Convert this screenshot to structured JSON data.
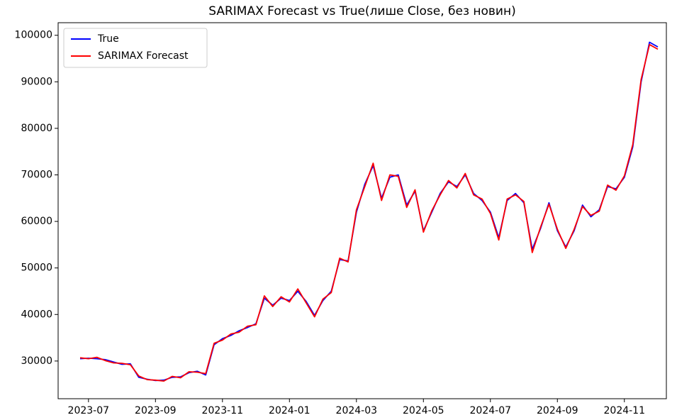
{
  "chart_data": {
    "type": "line",
    "title": "SARIMAX Forecast vs True(лише Close, без новин)",
    "categories": [
      null,
      "2023-07",
      null,
      null,
      null,
      null,
      null,
      null,
      null,
      "2023-09",
      null,
      null,
      null,
      null,
      null,
      null,
      null,
      "2023-11",
      null,
      null,
      null,
      null,
      null,
      null,
      null,
      "2024-01",
      null,
      null,
      null,
      null,
      null,
      null,
      null,
      "2024-03",
      null,
      null,
      null,
      null,
      null,
      null,
      null,
      "2024-05",
      null,
      null,
      null,
      null,
      null,
      null,
      null,
      "2024-07",
      null,
      null,
      null,
      null,
      null,
      null,
      null,
      "2024-09",
      null,
      null,
      null,
      null,
      null,
      null,
      null,
      "2024-11",
      null,
      null,
      null,
      null
    ],
    "series": [
      {
        "name": "True",
        "color": "#0000ff",
        "values": [
          30500,
          30600,
          30500,
          30300,
          29800,
          29300,
          29400,
          26500,
          26100,
          25800,
          25900,
          26500,
          26600,
          27500,
          27800,
          27000,
          33500,
          34800,
          35500,
          36500,
          37200,
          38000,
          43500,
          42000,
          43500,
          43000,
          45000,
          42800,
          39800,
          43000,
          45000,
          51800,
          51500,
          62000,
          68000,
          72000,
          65000,
          69500,
          70000,
          63500,
          66500,
          58000,
          62000,
          66000,
          68500,
          67500,
          70000,
          66000,
          64500,
          62000,
          56500,
          64500,
          66000,
          64000,
          54000,
          58500,
          64000,
          58000,
          54500,
          58000,
          63500,
          61000,
          62500,
          67500,
          67000,
          69500,
          76000,
          90000,
          98500,
          97500
        ]
      },
      {
        "name": "SARIMAX Forecast",
        "color": "#ff0000",
        "values": [
          30700,
          30500,
          30800,
          30100,
          29600,
          29500,
          29200,
          26800,
          26000,
          25900,
          25700,
          26700,
          26400,
          27700,
          27600,
          27300,
          33800,
          34500,
          35800,
          36200,
          37500,
          37800,
          44000,
          41700,
          43800,
          42700,
          45500,
          42500,
          39500,
          43300,
          44700,
          52100,
          51300,
          62500,
          67500,
          72500,
          64500,
          70000,
          69700,
          63000,
          66800,
          57700,
          62300,
          65700,
          68800,
          67200,
          70300,
          65700,
          64800,
          61700,
          56000,
          64800,
          65700,
          64300,
          53300,
          58800,
          63700,
          58300,
          54200,
          58300,
          63200,
          61300,
          62200,
          67800,
          66700,
          69800,
          76500,
          90500,
          98000,
          97000
        ]
      }
    ],
    "ylim": [
      21900,
      102700
    ],
    "yticks": [
      30000,
      40000,
      50000,
      60000,
      70000,
      80000,
      90000,
      100000
    ],
    "legend": "upper left",
    "grid": false
  }
}
